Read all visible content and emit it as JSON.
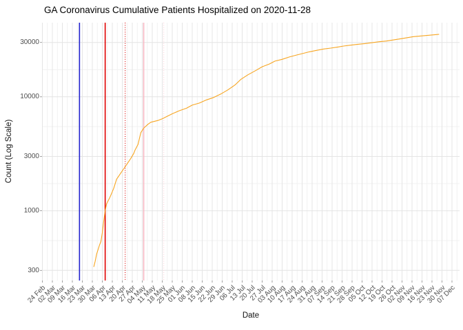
{
  "chart_data": {
    "type": "line",
    "title": "GA Coronavirus Cumulative Patients Hospitalized on 2020-11-28",
    "xlabel": "Date",
    "ylabel": "Count (Log Scale)",
    "y_scale": "log10",
    "grid": true,
    "legend": false,
    "y_ticks": [
      30000,
      10000,
      3000,
      1000,
      300
    ],
    "x_tick_labels": [
      "24 Feb",
      "02 Mar",
      "09 Mar",
      "16 Mar",
      "23 Mar",
      "30 Mar",
      "06 Apr",
      "13 Apr",
      "20 Apr",
      "27 Apr",
      "04 May",
      "11 May",
      "18 May",
      "25 May",
      "01 Jun",
      "08 Jun",
      "15 Jun",
      "22 Jun",
      "29 Jun",
      "06 Jul",
      "13 Jul",
      "20 Jul",
      "27 Jul",
      "03 Aug",
      "10 Aug",
      "17 Aug",
      "24 Aug",
      "31 Aug",
      "07 Sep",
      "14 Sep",
      "21 Sep",
      "28 Sep",
      "05 Oct",
      "12 Oct",
      "19 Oct",
      "26 Oct",
      "02 Nov",
      "09 Nov",
      "16 Nov",
      "23 Nov",
      "30 Nov",
      "07 Dec"
    ],
    "x_tick_start_date": "2020-02-24",
    "x_tick_interval_days": 7,
    "vlines": [
      {
        "name": "event-vline-blue",
        "date": "2020-03-21",
        "color": "#2121CD",
        "style": "solid"
      },
      {
        "name": "event-vline-red",
        "date": "2020-04-08",
        "color": "#E00000",
        "style": "solid"
      },
      {
        "name": "event-vline-red-dotted",
        "date": "2020-04-22",
        "color": "#DD2020",
        "style": "dotted"
      },
      {
        "name": "event-vline-pink",
        "date": "2020-05-05",
        "color": "#F7B6C2",
        "style": "solid"
      },
      {
        "name": "event-vline-pink-dotted",
        "date": "2020-05-19",
        "color": "#FBD3DA",
        "style": "dotted"
      }
    ],
    "series": [
      {
        "name": "cumulative-patients-hospitalized",
        "color": "#F7A520",
        "points": [
          [
            "2020-03-31",
            322
          ],
          [
            "2020-04-01",
            360
          ],
          [
            "2020-04-02",
            416
          ],
          [
            "2020-04-04",
            500
          ],
          [
            "2020-04-05",
            536
          ],
          [
            "2020-04-06",
            640
          ],
          [
            "2020-04-07",
            816
          ],
          [
            "2020-04-08",
            1000
          ],
          [
            "2020-04-09",
            1150
          ],
          [
            "2020-04-11",
            1290
          ],
          [
            "2020-04-12",
            1372
          ],
          [
            "2020-04-14",
            1578
          ],
          [
            "2020-04-16",
            1892
          ],
          [
            "2020-04-18",
            2060
          ],
          [
            "2020-04-19",
            2147
          ],
          [
            "2020-04-21",
            2338
          ],
          [
            "2020-04-24",
            2652
          ],
          [
            "2020-04-26",
            2886
          ],
          [
            "2020-04-28",
            3184
          ],
          [
            "2020-04-29",
            3420
          ],
          [
            "2020-05-01",
            3820
          ],
          [
            "2020-05-03",
            4850
          ],
          [
            "2020-05-05",
            5310
          ],
          [
            "2020-05-08",
            5750
          ],
          [
            "2020-05-10",
            5984
          ],
          [
            "2020-05-15",
            6204
          ],
          [
            "2020-05-18",
            6424
          ],
          [
            "2020-05-25",
            7094
          ],
          [
            "2020-05-30",
            7555
          ],
          [
            "2020-06-04",
            7943
          ],
          [
            "2020-06-08",
            8454
          ],
          [
            "2020-06-13",
            8815
          ],
          [
            "2020-06-18",
            9397
          ],
          [
            "2020-06-23",
            9863
          ],
          [
            "2020-06-28",
            10578
          ],
          [
            "2020-07-03",
            11500
          ],
          [
            "2020-07-08",
            12700
          ],
          [
            "2020-07-12",
            14200
          ],
          [
            "2020-07-17",
            15600
          ],
          [
            "2020-07-22",
            16870
          ],
          [
            "2020-07-27",
            18360
          ],
          [
            "2020-08-01",
            19410
          ],
          [
            "2020-08-05",
            20550
          ],
          [
            "2020-08-10",
            21330
          ],
          [
            "2020-08-15",
            22350
          ],
          [
            "2020-08-20",
            23220
          ],
          [
            "2020-08-25",
            24100
          ],
          [
            "2020-08-29",
            24790
          ],
          [
            "2020-09-03",
            25530
          ],
          [
            "2020-09-08",
            26240
          ],
          [
            "2020-09-13",
            26730
          ],
          [
            "2020-09-18",
            27350
          ],
          [
            "2020-09-22",
            27860
          ],
          [
            "2020-09-27",
            28380
          ],
          [
            "2020-10-02",
            28910
          ],
          [
            "2020-10-07",
            29310
          ],
          [
            "2020-10-12",
            29850
          ],
          [
            "2020-10-17",
            30410
          ],
          [
            "2020-10-22",
            30830
          ],
          [
            "2020-11-01",
            32300
          ],
          [
            "2020-11-10",
            33730
          ],
          [
            "2020-11-20",
            34600
          ],
          [
            "2020-11-28",
            35350
          ]
        ]
      }
    ]
  }
}
